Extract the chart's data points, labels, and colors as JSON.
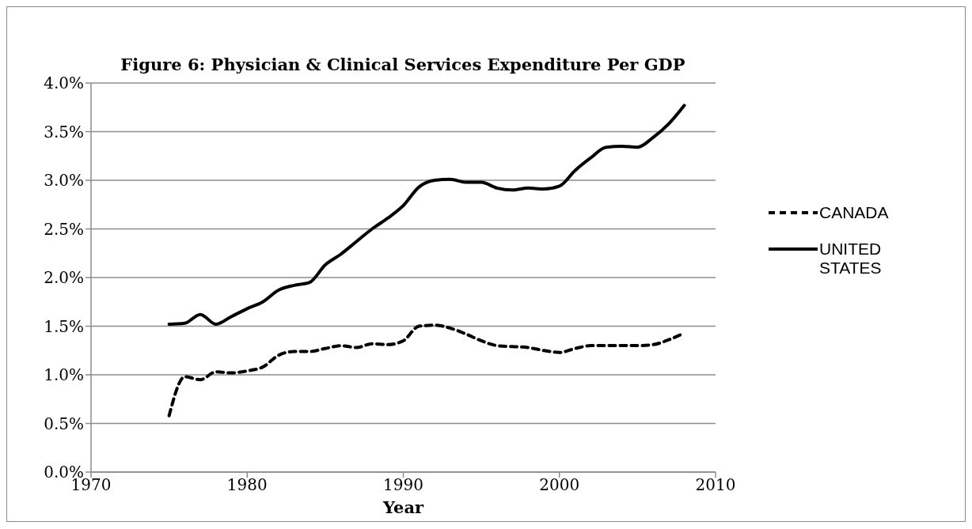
{
  "chart_data": {
    "type": "line",
    "title": "Figure 6: Physician & Clinical Services Expenditure Per GDP",
    "xlabel": "Year",
    "x": [
      1975,
      1976,
      1977,
      1978,
      1979,
      1980,
      1981,
      1982,
      1983,
      1984,
      1985,
      1986,
      1987,
      1988,
      1989,
      1990,
      1991,
      1992,
      1993,
      1994,
      1995,
      1996,
      1997,
      1998,
      1999,
      2000,
      2001,
      2002,
      2003,
      2004,
      2005,
      2006,
      2007,
      2008
    ],
    "series": [
      {
        "name": "CANADA",
        "color": "#000000",
        "line_style": "dashed",
        "values": [
          0.58,
          0.98,
          0.95,
          1.03,
          1.02,
          1.04,
          1.08,
          1.2,
          1.24,
          1.24,
          1.27,
          1.3,
          1.28,
          1.32,
          1.31,
          1.35,
          1.5,
          1.51,
          1.48,
          1.42,
          1.35,
          1.3,
          1.29,
          1.28,
          1.25,
          1.23,
          1.27,
          1.3,
          1.3,
          1.3,
          1.3,
          1.31,
          1.36,
          1.43
        ]
      },
      {
        "name": "UNITED STATES",
        "color": "#000000",
        "line_style": "solid",
        "values": [
          1.52,
          1.53,
          1.62,
          1.52,
          1.6,
          1.68,
          1.75,
          1.87,
          1.92,
          1.95,
          2.13,
          2.24,
          2.37,
          2.5,
          2.61,
          2.74,
          2.93,
          3.0,
          3.01,
          2.98,
          2.98,
          2.92,
          2.9,
          2.92,
          2.91,
          2.94,
          3.1,
          3.23,
          3.34,
          3.35,
          3.34,
          3.44,
          3.58,
          3.77
        ]
      }
    ],
    "xlim": [
      1970,
      2010
    ],
    "xticks": [
      1970,
      1980,
      1990,
      2000,
      2010
    ],
    "ylim": [
      0,
      4
    ],
    "yticks": [
      {
        "value": 0,
        "label": "0.0%"
      },
      {
        "value": 0.5,
        "label": "0.5%"
      },
      {
        "value": 1,
        "label": "1.0%"
      },
      {
        "value": 1.5,
        "label": "1.5%"
      },
      {
        "value": 2,
        "label": "2.0%"
      },
      {
        "value": 2.5,
        "label": "2.5%"
      },
      {
        "value": 3,
        "label": "3.0%"
      },
      {
        "value": 3.5,
        "label": "3.5%"
      },
      {
        "value": 4,
        "label": "4.0%"
      }
    ],
    "grid": "y",
    "legend": "right",
    "marker": "none"
  }
}
